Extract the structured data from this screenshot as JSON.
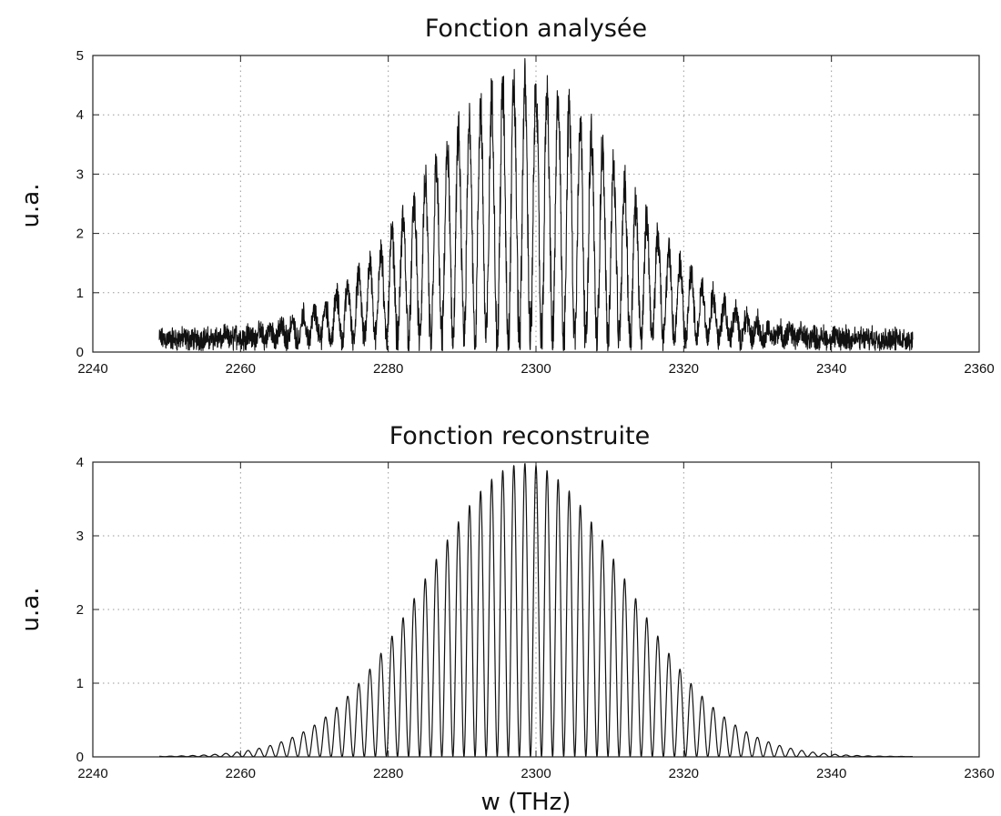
{
  "chart_data": [
    {
      "type": "line",
      "title": "Fonction analysée",
      "ylabel": "u.a.",
      "xlabel": "",
      "xlim": [
        2240,
        2360
      ],
      "ylim": [
        0,
        5
      ],
      "xticks": [
        "2240",
        "2260",
        "2280",
        "2300",
        "2320",
        "2340",
        "2360"
      ],
      "yticks": [
        "0",
        "1",
        "2",
        "3",
        "4",
        "5"
      ],
      "grid": true,
      "line_color": "#111111",
      "series": [
        {
          "x_range": [
            2249,
            2351
          ],
          "envelope": {
            "center": 2298.5,
            "sigma": 13.5,
            "peak": 4.3,
            "fringe_period": 3.0
          },
          "noise_floor": 0.25,
          "peaks": [
            {
              "x": 2270.0,
              "y": 0.8
            },
            {
              "x": 2273.0,
              "y": 1.1
            },
            {
              "x": 2276.0,
              "y": 1.5
            },
            {
              "x": 2279.0,
              "y": 1.9
            },
            {
              "x": 2282.0,
              "y": 2.3
            },
            {
              "x": 2285.0,
              "y": 2.8
            },
            {
              "x": 2288.0,
              "y": 3.4
            },
            {
              "x": 2291.0,
              "y": 3.8
            },
            {
              "x": 2294.0,
              "y": 4.2
            },
            {
              "x": 2297.0,
              "y": 4.3
            },
            {
              "x": 2300.0,
              "y": 4.5
            },
            {
              "x": 2303.0,
              "y": 4.2
            },
            {
              "x": 2306.0,
              "y": 3.9
            },
            {
              "x": 2309.0,
              "y": 3.5
            },
            {
              "x": 2312.0,
              "y": 3.0
            },
            {
              "x": 2315.0,
              "y": 2.4
            },
            {
              "x": 2318.0,
              "y": 1.8
            },
            {
              "x": 2321.0,
              "y": 1.3
            },
            {
              "x": 2324.0,
              "y": 0.9
            },
            {
              "x": 2327.0,
              "y": 0.6
            }
          ]
        }
      ]
    },
    {
      "type": "line",
      "title": "Fonction reconstruite",
      "ylabel": "u.a.",
      "xlabel": "w  (THz)",
      "xlim": [
        2240,
        2360
      ],
      "ylim": [
        0,
        4
      ],
      "xticks": [
        "2240",
        "2260",
        "2280",
        "2300",
        "2320",
        "2340",
        "2360"
      ],
      "yticks": [
        "0",
        "1",
        "2",
        "3",
        "4"
      ],
      "grid": true,
      "line_color": "#111111",
      "series": [
        {
          "x_range": [
            2249,
            2351
          ],
          "envelope": {
            "center": 2298.5,
            "sigma": 13.5,
            "peak": 3.98,
            "fringe_period": 3.0
          },
          "peaks": [
            {
              "x": 2264.0,
              "y": 0.2
            },
            {
              "x": 2267.0,
              "y": 0.3
            },
            {
              "x": 2270.0,
              "y": 0.5
            },
            {
              "x": 2273.0,
              "y": 0.7
            },
            {
              "x": 2276.0,
              "y": 1.1
            },
            {
              "x": 2279.0,
              "y": 1.6
            },
            {
              "x": 2282.0,
              "y": 2.0
            },
            {
              "x": 2285.0,
              "y": 2.6
            },
            {
              "x": 2288.0,
              "y": 3.0
            },
            {
              "x": 2291.0,
              "y": 3.5
            },
            {
              "x": 2294.0,
              "y": 3.8
            },
            {
              "x": 2297.0,
              "y": 3.95
            },
            {
              "x": 2300.0,
              "y": 3.98
            },
            {
              "x": 2303.0,
              "y": 3.85
            },
            {
              "x": 2306.0,
              "y": 3.6
            },
            {
              "x": 2309.0,
              "y": 3.2
            },
            {
              "x": 2312.0,
              "y": 2.7
            },
            {
              "x": 2315.0,
              "y": 2.2
            },
            {
              "x": 2318.0,
              "y": 1.6
            },
            {
              "x": 2321.0,
              "y": 1.1
            },
            {
              "x": 2324.0,
              "y": 0.8
            },
            {
              "x": 2327.0,
              "y": 0.5
            },
            {
              "x": 2330.0,
              "y": 0.35
            },
            {
              "x": 2333.0,
              "y": 0.2
            },
            {
              "x": 2336.0,
              "y": 0.1
            }
          ]
        }
      ]
    }
  ]
}
